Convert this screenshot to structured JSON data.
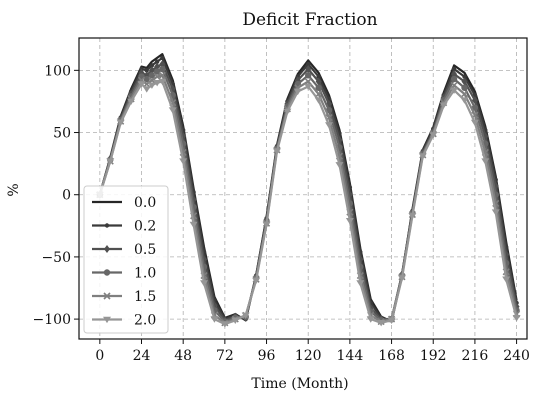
{
  "chart_data": {
    "type": "line",
    "title": "Deficit Fraction",
    "xlabel": "Time (Month)",
    "ylabel": "%",
    "xlim": [
      -12,
      246
    ],
    "ylim": [
      -116,
      126
    ],
    "xticks": [
      0,
      24,
      48,
      72,
      96,
      120,
      144,
      168,
      192,
      216,
      240
    ],
    "yticks": [
      -100,
      -50,
      0,
      50,
      100
    ],
    "grid": true,
    "legend_position": "lower-left",
    "x": [
      0,
      6,
      12,
      18,
      24,
      27,
      30,
      33,
      36,
      42,
      48,
      54,
      60,
      66,
      72,
      78,
      84,
      90,
      96,
      102,
      108,
      114,
      120,
      126,
      132,
      138,
      144,
      150,
      156,
      162,
      168,
      174,
      180,
      186,
      192,
      198,
      204,
      210,
      216,
      222,
      228,
      234,
      240
    ],
    "series": [
      {
        "name": "0.0",
        "marker": "none",
        "color": "#262626",
        "values": [
          0,
          30,
          63,
          85,
          103,
          102,
          107,
          110,
          113,
          92,
          55,
          5,
          -42,
          -82,
          -99,
          -96,
          -101,
          -65,
          -18,
          40,
          77,
          97,
          108,
          98,
          80,
          52,
          9,
          -43,
          -84,
          -98,
          -102,
          -65,
          -12,
          36,
          54,
          82,
          104,
          98,
          83,
          55,
          15,
          -38,
          -85
        ]
      },
      {
        "name": "0.2",
        "marker": "dot",
        "color": "#3a3a3a",
        "values": [
          0,
          29,
          62,
          83,
          101,
          100,
          104,
          107,
          110,
          89,
          52,
          2,
          -46,
          -85,
          -100,
          -97,
          -100,
          -65,
          -19,
          39,
          75,
          95,
          105,
          95,
          77,
          49,
          6,
          -46,
          -87,
          -99,
          -101,
          -64,
          -13,
          35,
          53,
          80,
          101,
          95,
          80,
          52,
          12,
          -42,
          -87
        ]
      },
      {
        "name": "0.5",
        "marker": "diamond",
        "color": "#505050",
        "values": [
          0,
          29,
          61,
          81,
          98,
          96,
          100,
          103,
          105,
          85,
          47,
          -4,
          -52,
          -89,
          -101,
          -98,
          -99,
          -66,
          -20,
          38,
          73,
          92,
          101,
          91,
          73,
          44,
          0,
          -52,
          -91,
          -100,
          -100,
          -64,
          -14,
          34,
          51,
          78,
          97,
          91,
          76,
          47,
          7,
          -48,
          -90
        ]
      },
      {
        "name": "1.0",
        "marker": "circle",
        "color": "#676767",
        "values": [
          0,
          28,
          60,
          79,
          95,
          93,
          96,
          99,
          101,
          80,
          41,
          -10,
          -58,
          -93,
          -102,
          -99,
          -98,
          -67,
          -22,
          37,
          71,
          89,
          96,
          86,
          68,
          38,
          -7,
          -58,
          -94,
          -101,
          -100,
          -65,
          -15,
          33,
          50,
          76,
          93,
          86,
          70,
          41,
          0,
          -55,
          -93
        ]
      },
      {
        "name": "1.5",
        "marker": "x",
        "color": "#7f7f7f",
        "values": [
          0,
          27,
          59,
          77,
          92,
          89,
          92,
          95,
          96,
          74,
          34,
          -17,
          -65,
          -97,
          -103,
          -100,
          -97,
          -68,
          -23,
          36,
          69,
          86,
          91,
          81,
          62,
          31,
          -14,
          -65,
          -97,
          -102,
          -100,
          -66,
          -16,
          32,
          49,
          74,
          88,
          81,
          64,
          34,
          -7,
          -62,
          -96
        ]
      },
      {
        "name": "2.0",
        "marker": "triangle-down",
        "color": "#969696",
        "values": [
          0,
          27,
          58,
          75,
          89,
          85,
          88,
          90,
          91,
          68,
          27,
          -24,
          -71,
          -100,
          -104,
          -101,
          -97,
          -69,
          -24,
          35,
          67,
          83,
          87,
          76,
          56,
          24,
          -21,
          -71,
          -100,
          -103,
          -101,
          -67,
          -17,
          31,
          48,
          72,
          84,
          76,
          58,
          27,
          -14,
          -68,
          -99
        ]
      }
    ]
  }
}
